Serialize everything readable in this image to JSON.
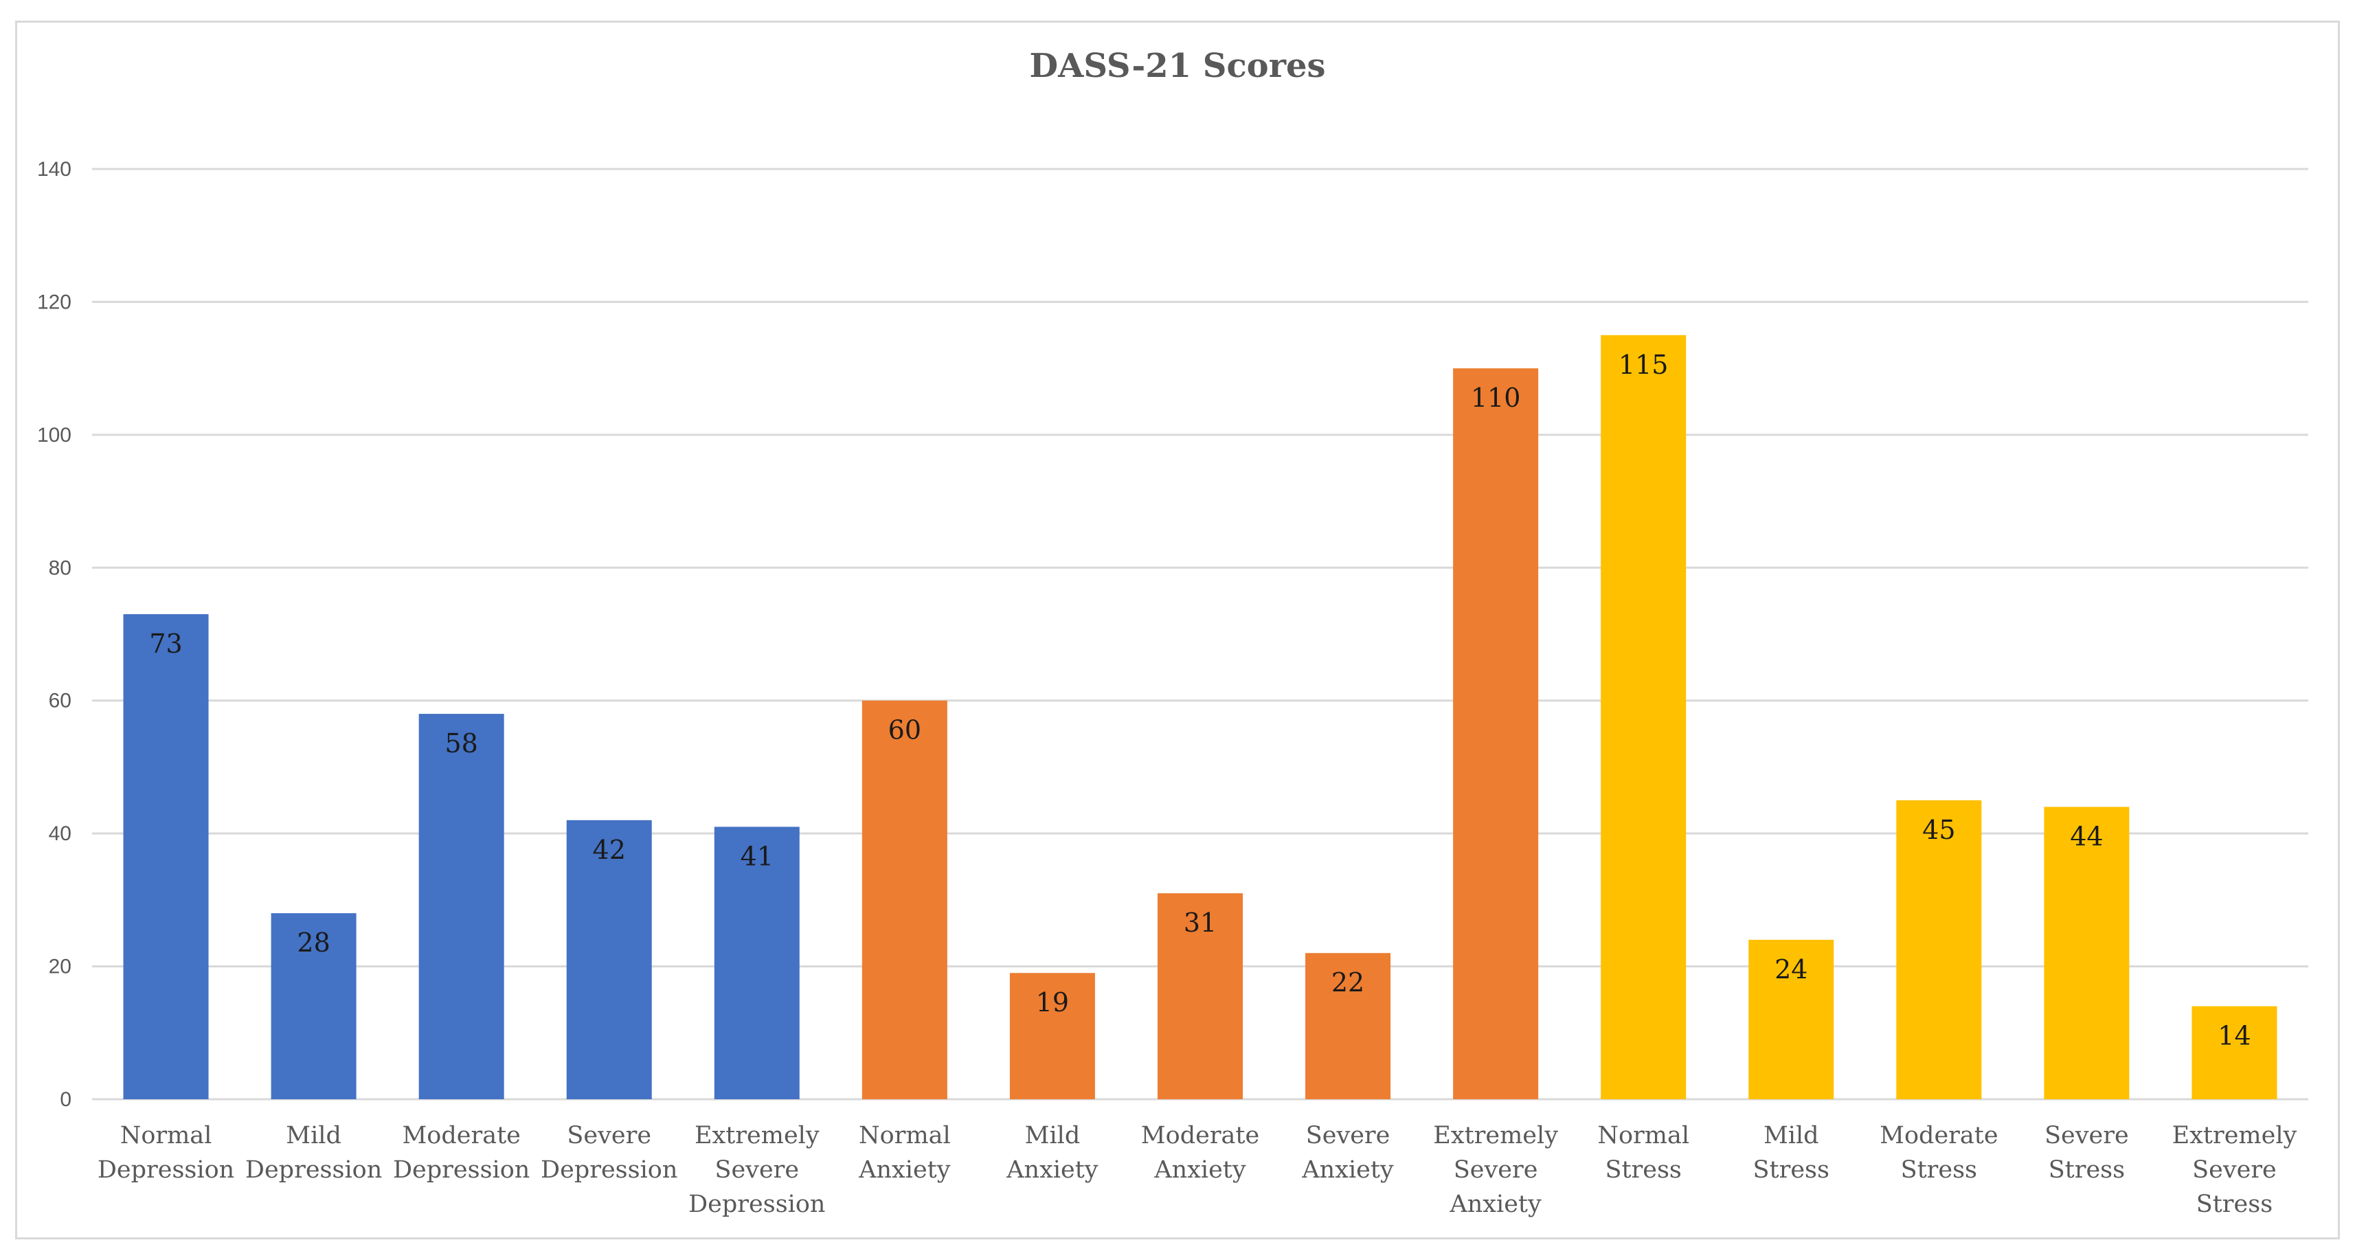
{
  "chart_data": {
    "type": "bar",
    "title": "DASS-21 Scores",
    "xlabel": "",
    "ylabel": "",
    "ylim": [
      0,
      140
    ],
    "yticks": [
      0,
      20,
      40,
      60,
      80,
      100,
      120,
      140
    ],
    "grid": true,
    "legend": "none",
    "categories": [
      "Normal Depression",
      "Mild Depression",
      "Moderate Depression",
      "Severe Depression",
      "Extremely Severe Depression",
      "Normal Anxiety",
      "Mild Anxiety",
      "Moderate Anxiety",
      "Severe Anxiety",
      "Extremely Severe Anxiety",
      "Normal Stress",
      "Mild Stress",
      "Moderate Stress",
      "Severe Stress",
      "Extremely Severe Stress"
    ],
    "category_lines": [
      [
        "Normal",
        "Depression"
      ],
      [
        "Mild",
        "Depression"
      ],
      [
        "Moderate",
        "Depression"
      ],
      [
        "Severe",
        "Depression"
      ],
      [
        "Extremely",
        "Severe",
        "Depression"
      ],
      [
        "Normal",
        "Anxiety"
      ],
      [
        "Mild",
        "Anxiety"
      ],
      [
        "Moderate",
        "Anxiety"
      ],
      [
        "Severe",
        "Anxiety"
      ],
      [
        "Extremely",
        "Severe",
        "Anxiety"
      ],
      [
        "Normal",
        "Stress"
      ],
      [
        "Mild",
        "Stress"
      ],
      [
        "Moderate",
        "Stress"
      ],
      [
        "Severe",
        "Stress"
      ],
      [
        "Extremely",
        "Severe",
        "Stress"
      ]
    ],
    "values": [
      73,
      28,
      58,
      42,
      41,
      60,
      19,
      31,
      22,
      110,
      115,
      24,
      45,
      44,
      14
    ],
    "colors": [
      "#4472C4",
      "#4472C4",
      "#4472C4",
      "#4472C4",
      "#4472C4",
      "#ED7D31",
      "#ED7D31",
      "#ED7D31",
      "#ED7D31",
      "#ED7D31",
      "#FFC000",
      "#FFC000",
      "#FFC000",
      "#FFC000",
      "#FFC000"
    ],
    "gridline_color": "#d9d9d9"
  }
}
